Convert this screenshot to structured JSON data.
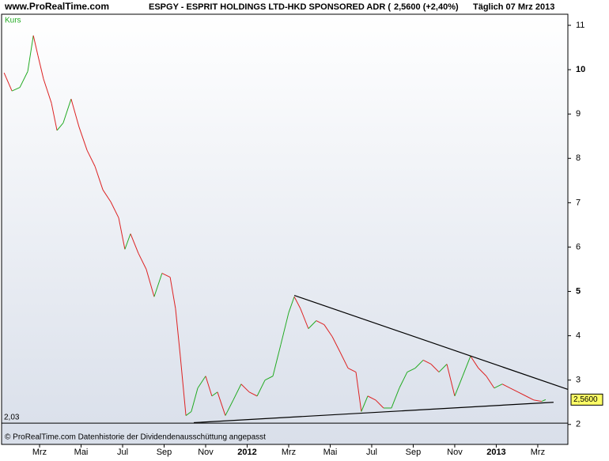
{
  "header": {
    "site": "www.ProRealTime.com",
    "title": "ESPGY - ESPRIT HOLDINGS LTD-HKD SPONSORED ADR (",
    "quote": "2,5600 (+2,40%)",
    "period": "Täglich  07 Mrz 2013"
  },
  "footer": "© ProRealTime.com  Datenhistorie der Dividendenausschüttung angepasst",
  "chart_data": {
    "type": "line",
    "series": [
      {
        "name": "Kurs",
        "color": "#22aa22",
        "up_color": "#22aa22",
        "down_color": "#dd2222",
        "x": [
          1.29,
          1.67,
          2.05,
          2.43,
          2.7,
          2.92,
          3.19,
          3.57,
          3.84,
          4.14,
          4.52,
          4.9,
          5.29,
          5.67,
          6.05,
          6.43,
          6.81,
          7.11,
          7.38,
          7.76,
          8.14,
          8.52,
          8.9,
          9.29,
          9.55,
          9.78,
          10.05,
          10.31,
          10.62,
          11.0,
          11.3,
          11.57,
          11.95,
          12.33,
          12.71,
          13.1,
          13.48,
          13.86,
          14.24,
          14.62,
          15.0,
          15.27,
          15.57,
          15.95,
          16.33,
          16.71,
          17.1,
          17.48,
          17.86,
          18.24,
          18.5,
          18.81,
          19.19,
          19.57,
          19.95,
          20.33,
          20.71,
          21.1,
          21.48,
          21.86,
          22.24,
          22.62,
          23.0,
          23.38,
          23.76,
          24.14,
          24.52,
          24.9,
          25.29,
          25.67,
          26.05,
          26.43,
          26.81,
          27.19,
          27.38
        ],
        "values": [
          9.93,
          9.52,
          9.6,
          9.96,
          10.77,
          10.32,
          9.79,
          9.25,
          8.63,
          8.8,
          9.34,
          8.71,
          8.18,
          7.82,
          7.29,
          7.02,
          6.66,
          5.95,
          6.3,
          5.86,
          5.5,
          4.88,
          5.41,
          5.32,
          4.61,
          3.54,
          2.2,
          2.29,
          2.82,
          3.09,
          2.64,
          2.73,
          2.2,
          2.55,
          2.91,
          2.73,
          2.64,
          3.0,
          3.09,
          3.8,
          4.52,
          4.88,
          4.61,
          4.16,
          4.34,
          4.25,
          3.98,
          3.63,
          3.27,
          3.18,
          2.29,
          2.64,
          2.55,
          2.37,
          2.37,
          2.82,
          3.18,
          3.27,
          3.45,
          3.36,
          3.18,
          3.36,
          2.64,
          3.09,
          3.54,
          3.27,
          3.09,
          2.82,
          2.91,
          2.82,
          2.73,
          2.64,
          2.55,
          2.52,
          2.56
        ]
      }
    ],
    "trendlines": [
      {
        "x": [
          15.27,
          28.45
        ],
        "values": [
          4.91,
          2.79
        ]
      },
      {
        "x": [
          10.43,
          27.76
        ],
        "values": [
          2.04,
          2.5
        ]
      }
    ],
    "level": {
      "value": 2.03,
      "label": "2,03"
    },
    "last": {
      "value": 2.56,
      "label": "2,5600"
    },
    "xlim": [
      1.17,
      28.45
    ],
    "ylim": [
      1.55,
      11.25
    ],
    "xticks": [
      {
        "value": 3,
        "label": "Mrz"
      },
      {
        "value": 5,
        "label": "Mai"
      },
      {
        "value": 7,
        "label": "Jul"
      },
      {
        "value": 9,
        "label": "Sep"
      },
      {
        "value": 11,
        "label": "Nov"
      },
      {
        "value": 13,
        "label": "2012"
      },
      {
        "value": 15,
        "label": "Mrz"
      },
      {
        "value": 17,
        "label": "Mai"
      },
      {
        "value": 19,
        "label": "Jul"
      },
      {
        "value": 21,
        "label": "Sep"
      },
      {
        "value": 23,
        "label": "Nov"
      },
      {
        "value": 25,
        "label": "2013"
      },
      {
        "value": 27,
        "label": "Mrz"
      }
    ],
    "yticks": [
      2,
      3,
      4,
      5,
      6,
      7,
      8,
      9,
      10,
      11
    ]
  }
}
